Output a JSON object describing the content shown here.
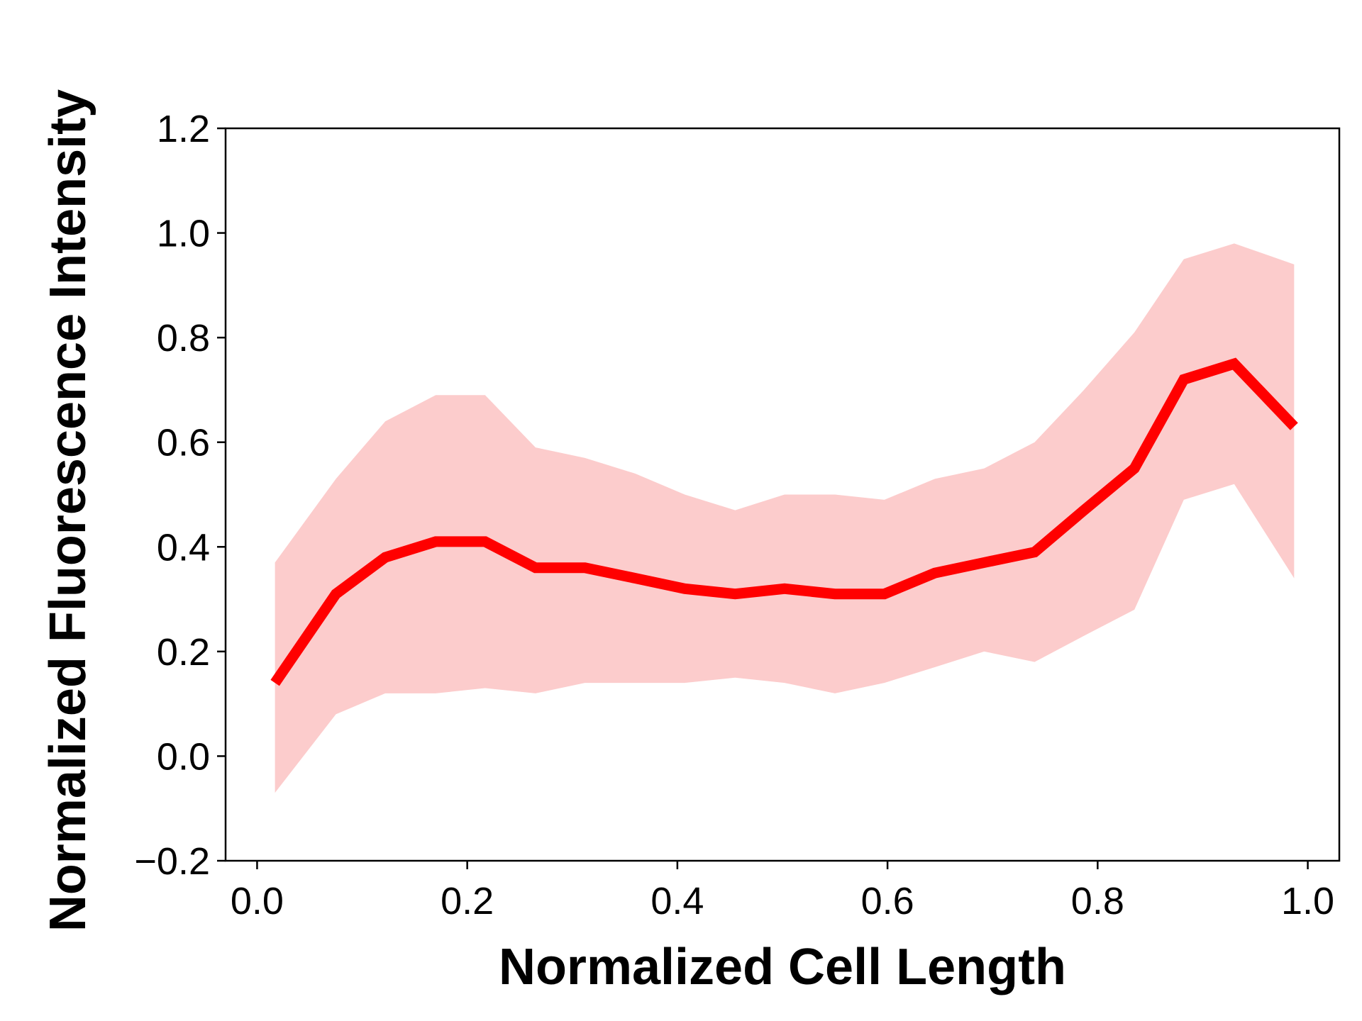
{
  "chart_data": {
    "type": "line",
    "title": "",
    "xlabel": "Normalized Cell Length",
    "ylabel": "Normalized Fluorescence Intensity",
    "xlim": [
      -0.03,
      1.03
    ],
    "ylim": [
      -0.2,
      1.2
    ],
    "x_ticks": [
      "0.0",
      "0.2",
      "0.4",
      "0.6",
      "0.8",
      "1.0"
    ],
    "y_ticks": [
      "−0.2",
      "0.0",
      "0.2",
      "0.4",
      "0.6",
      "0.8",
      "1.0",
      "1.2"
    ],
    "grid": false,
    "legend": false,
    "series": [
      {
        "color": "#ff0000",
        "band_color": "#fccccc",
        "x": [
          0.017,
          0.075,
          0.122,
          0.17,
          0.217,
          0.265,
          0.312,
          0.36,
          0.407,
          0.455,
          0.502,
          0.55,
          0.597,
          0.645,
          0.692,
          0.74,
          0.787,
          0.835,
          0.882,
          0.93,
          0.987
        ],
        "values": [
          0.14,
          0.31,
          0.38,
          0.41,
          0.41,
          0.36,
          0.36,
          0.34,
          0.32,
          0.31,
          0.32,
          0.31,
          0.31,
          0.35,
          0.37,
          0.39,
          0.47,
          0.55,
          0.72,
          0.75,
          0.63
        ],
        "lower": [
          -0.07,
          0.08,
          0.12,
          0.12,
          0.13,
          0.12,
          0.14,
          0.14,
          0.14,
          0.15,
          0.14,
          0.12,
          0.14,
          0.17,
          0.2,
          0.18,
          0.23,
          0.28,
          0.49,
          0.52,
          0.34
        ],
        "upper": [
          0.37,
          0.53,
          0.64,
          0.69,
          0.69,
          0.59,
          0.57,
          0.54,
          0.5,
          0.47,
          0.5,
          0.5,
          0.49,
          0.53,
          0.55,
          0.6,
          0.7,
          0.81,
          0.95,
          0.98,
          0.94
        ]
      }
    ]
  }
}
